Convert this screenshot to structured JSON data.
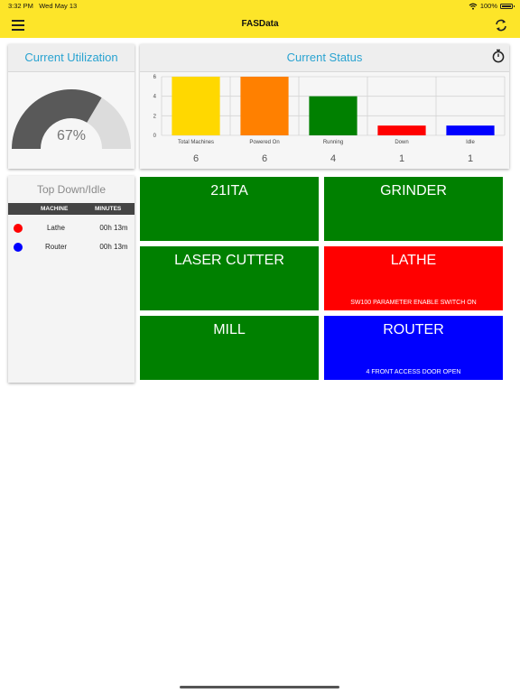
{
  "status_bar": {
    "time": "3:32 PM",
    "date": "Wed May 13",
    "battery": "100%"
  },
  "navbar": {
    "title": "FASData",
    "menu_icon": "hamburger-menu-icon",
    "refresh_icon": "refresh-icon"
  },
  "utilization": {
    "title": "Current Utilization",
    "value_label": "67%",
    "value_fraction": 0.67,
    "fill_color": "#595959",
    "track_color": "#dcdcdc"
  },
  "status": {
    "title": "Current Status",
    "timer_icon": "stopwatch-icon",
    "chart_data": {
      "type": "bar",
      "categories": [
        "Total Machines",
        "Powered On",
        "Running",
        "Down",
        "Idle"
      ],
      "values": [
        6,
        6,
        4,
        1,
        1
      ],
      "value_labels": [
        "6",
        "6",
        "4",
        "1",
        "1"
      ],
      "colors": [
        "#ffd800",
        "#ff8000",
        "#008000",
        "#ff0000",
        "#0000ff"
      ],
      "ylim": [
        0,
        6
      ],
      "yticks": [
        "0",
        "2",
        "4",
        "6"
      ],
      "grid": true
    }
  },
  "down_idle": {
    "title": "Top Down/Idle",
    "col_machine": "MACHINE",
    "col_minutes": "MINUTES",
    "rows": [
      {
        "color": "#ff0000",
        "machine": "Lathe",
        "minutes": "00h 13m"
      },
      {
        "color": "#0000ff",
        "machine": "Router",
        "minutes": "00h 13m"
      }
    ]
  },
  "tiles": [
    {
      "name": "21ITA",
      "message": "",
      "color": "#008000"
    },
    {
      "name": "GRINDER",
      "message": "",
      "color": "#008000"
    },
    {
      "name": "LASER CUTTER",
      "message": "",
      "color": "#008000"
    },
    {
      "name": "LATHE",
      "message": "SW100 PARAMETER ENABLE SWITCH ON",
      "color": "#ff0000"
    },
    {
      "name": "MILL",
      "message": "",
      "color": "#008000"
    },
    {
      "name": "ROUTER",
      "message": "4 FRONT ACCESS DOOR OPEN",
      "color": "#0000ff"
    }
  ]
}
